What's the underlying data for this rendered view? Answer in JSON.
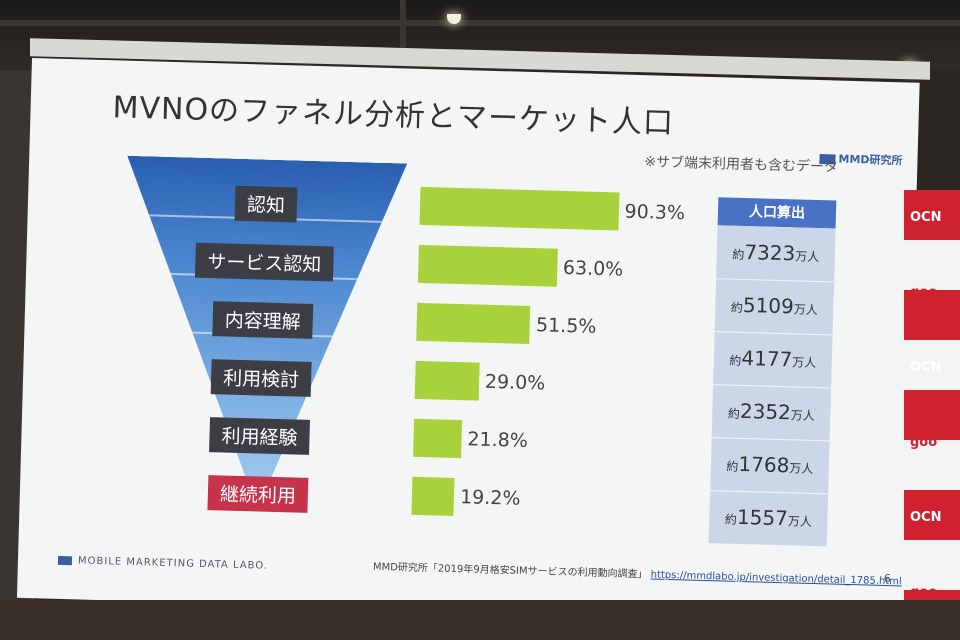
{
  "slide": {
    "title": "MVNOのファネル分析とマーケット人口",
    "note": "※サブ端末利用者も含むデータ",
    "logo": "MMD研究所",
    "population_header": "人口算出",
    "stages": [
      {
        "label": "認知",
        "percent": "90.3%",
        "value": 90.3,
        "pop_prefix": "約",
        "pop_number": "7323",
        "pop_unit": "万人",
        "style": "dark"
      },
      {
        "label": "サービス認知",
        "percent": "63.0%",
        "value": 63.0,
        "pop_prefix": "約",
        "pop_number": "5109",
        "pop_unit": "万人",
        "style": "dark"
      },
      {
        "label": "内容理解",
        "percent": "51.5%",
        "value": 51.5,
        "pop_prefix": "約",
        "pop_number": "4177",
        "pop_unit": "万人",
        "style": "dark"
      },
      {
        "label": "利用検討",
        "percent": "29.0%",
        "value": 29.0,
        "pop_prefix": "約",
        "pop_number": "2352",
        "pop_unit": "万人",
        "style": "dark"
      },
      {
        "label": "利用経験",
        "percent": "21.8%",
        "value": 21.8,
        "pop_prefix": "約",
        "pop_number": "1768",
        "pop_unit": "万人",
        "style": "dark"
      },
      {
        "label": "継続利用",
        "percent": "19.2%",
        "value": 19.2,
        "pop_prefix": "約",
        "pop_number": "1557",
        "pop_unit": "万人",
        "style": "red"
      }
    ],
    "footer_left": "MOBILE MARKETING DATA LABO.",
    "footer_source": "MMD研究所「2019年9月格安SIMサービスの利用動向調査」",
    "footer_url": "https://mmdlabo.jp/investigation/detail_1785.html",
    "page_number": "6"
  },
  "banner": {
    "labels": [
      "OCN",
      "goo",
      "OCN",
      "goo",
      "OCN",
      "goo"
    ]
  },
  "colors": {
    "bar": "#a8d23c",
    "funnel": "#4b86cf",
    "stage_dark": "#3d3d45",
    "stage_red": "#c6334a",
    "pop_header": "#4a72c4"
  }
}
